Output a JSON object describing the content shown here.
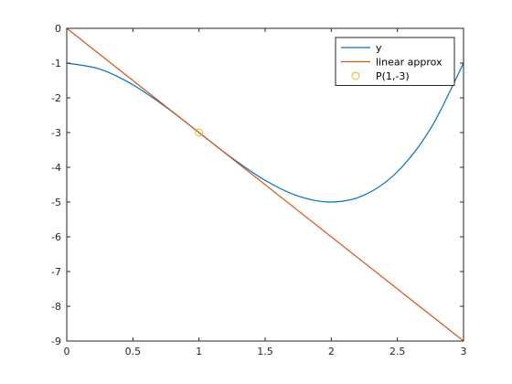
{
  "chart_data": {
    "type": "line",
    "title": "",
    "xlabel": "",
    "ylabel": "",
    "xlim": [
      0,
      3
    ],
    "ylim": [
      -9,
      0
    ],
    "grid": false,
    "legend_position": "top-right",
    "x_ticks": [
      0,
      0.5,
      1,
      1.5,
      2,
      2.5,
      3
    ],
    "x_tick_labels": [
      "0",
      "0.5",
      "1",
      "1.5",
      "2",
      "2.5",
      "3"
    ],
    "y_ticks": [
      0,
      -1,
      -2,
      -3,
      -4,
      -5,
      -6,
      -7,
      -8,
      -9
    ],
    "y_tick_labels": [
      "0",
      "-1",
      "-2",
      "-3",
      "-4",
      "-5",
      "-6",
      "-7",
      "-8",
      "-9"
    ],
    "series": [
      {
        "name": "y",
        "kind": "line",
        "color": "#0072bd",
        "x": [
          0,
          0.25,
          0.5,
          0.75,
          1,
          1.25,
          1.5,
          1.75,
          2,
          2.25,
          2.5,
          2.75,
          3
        ],
        "y": [
          -1,
          -1.172,
          -1.625,
          -2.266,
          -3,
          -3.734,
          -4.375,
          -4.828,
          -5,
          -4.797,
          -4.125,
          -2.891,
          -1
        ]
      },
      {
        "name": "linear approx",
        "kind": "line",
        "color": "#d95319",
        "x": [
          0,
          3
        ],
        "y": [
          0,
          -9
        ]
      },
      {
        "name": "P(1,-3)",
        "kind": "marker",
        "marker": "circle",
        "color": "#edb120",
        "x": [
          1
        ],
        "y": [
          -3
        ]
      }
    ]
  }
}
